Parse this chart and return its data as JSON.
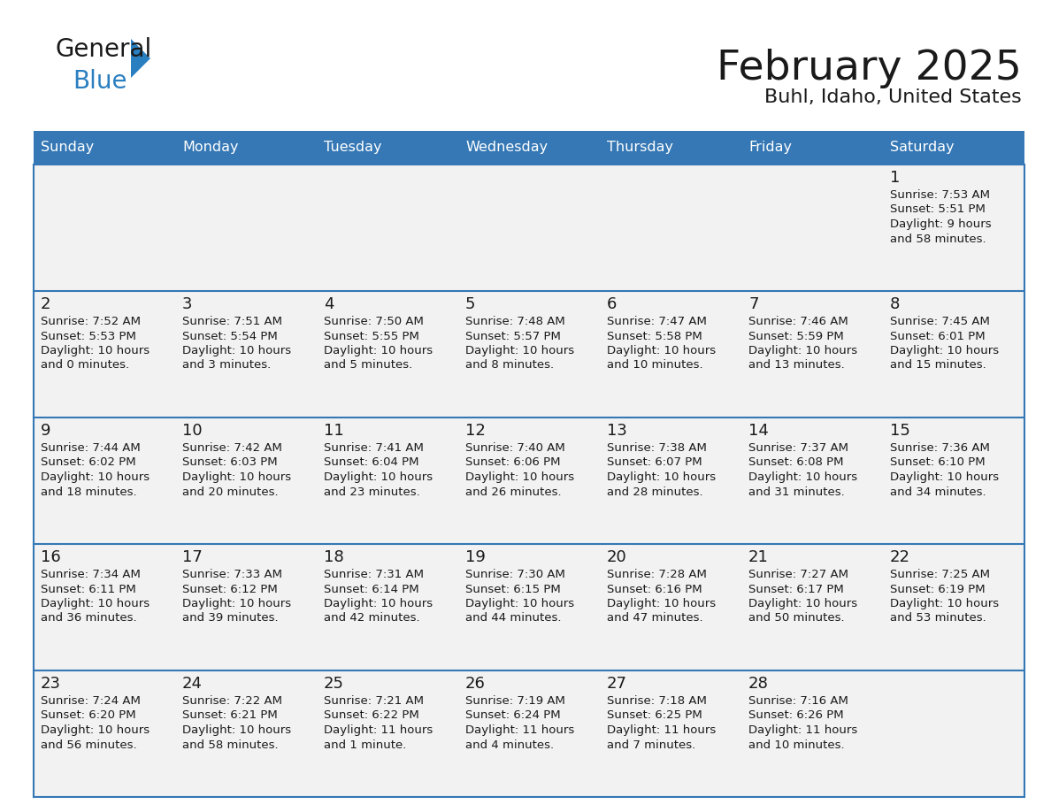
{
  "title": "February 2025",
  "subtitle": "Buhl, Idaho, United States",
  "header_color": "#3578b5",
  "header_text_color": "#ffffff",
  "cell_bg_color": "#f2f2f2",
  "row_border_color": "#3578b5",
  "text_color": "#1a1a1a",
  "day_names": [
    "Sunday",
    "Monday",
    "Tuesday",
    "Wednesday",
    "Thursday",
    "Friday",
    "Saturday"
  ],
  "days": [
    {
      "day": 1,
      "col": 6,
      "row": 0,
      "sunrise": "7:53 AM",
      "sunset": "5:51 PM",
      "daylight_line1": "Daylight: 9 hours",
      "daylight_line2": "and 58 minutes."
    },
    {
      "day": 2,
      "col": 0,
      "row": 1,
      "sunrise": "7:52 AM",
      "sunset": "5:53 PM",
      "daylight_line1": "Daylight: 10 hours",
      "daylight_line2": "and 0 minutes."
    },
    {
      "day": 3,
      "col": 1,
      "row": 1,
      "sunrise": "7:51 AM",
      "sunset": "5:54 PM",
      "daylight_line1": "Daylight: 10 hours",
      "daylight_line2": "and 3 minutes."
    },
    {
      "day": 4,
      "col": 2,
      "row": 1,
      "sunrise": "7:50 AM",
      "sunset": "5:55 PM",
      "daylight_line1": "Daylight: 10 hours",
      "daylight_line2": "and 5 minutes."
    },
    {
      "day": 5,
      "col": 3,
      "row": 1,
      "sunrise": "7:48 AM",
      "sunset": "5:57 PM",
      "daylight_line1": "Daylight: 10 hours",
      "daylight_line2": "and 8 minutes."
    },
    {
      "day": 6,
      "col": 4,
      "row": 1,
      "sunrise": "7:47 AM",
      "sunset": "5:58 PM",
      "daylight_line1": "Daylight: 10 hours",
      "daylight_line2": "and 10 minutes."
    },
    {
      "day": 7,
      "col": 5,
      "row": 1,
      "sunrise": "7:46 AM",
      "sunset": "5:59 PM",
      "daylight_line1": "Daylight: 10 hours",
      "daylight_line2": "and 13 minutes."
    },
    {
      "day": 8,
      "col": 6,
      "row": 1,
      "sunrise": "7:45 AM",
      "sunset": "6:01 PM",
      "daylight_line1": "Daylight: 10 hours",
      "daylight_line2": "and 15 minutes."
    },
    {
      "day": 9,
      "col": 0,
      "row": 2,
      "sunrise": "7:44 AM",
      "sunset": "6:02 PM",
      "daylight_line1": "Daylight: 10 hours",
      "daylight_line2": "and 18 minutes."
    },
    {
      "day": 10,
      "col": 1,
      "row": 2,
      "sunrise": "7:42 AM",
      "sunset": "6:03 PM",
      "daylight_line1": "Daylight: 10 hours",
      "daylight_line2": "and 20 minutes."
    },
    {
      "day": 11,
      "col": 2,
      "row": 2,
      "sunrise": "7:41 AM",
      "sunset": "6:04 PM",
      "daylight_line1": "Daylight: 10 hours",
      "daylight_line2": "and 23 minutes."
    },
    {
      "day": 12,
      "col": 3,
      "row": 2,
      "sunrise": "7:40 AM",
      "sunset": "6:06 PM",
      "daylight_line1": "Daylight: 10 hours",
      "daylight_line2": "and 26 minutes."
    },
    {
      "day": 13,
      "col": 4,
      "row": 2,
      "sunrise": "7:38 AM",
      "sunset": "6:07 PM",
      "daylight_line1": "Daylight: 10 hours",
      "daylight_line2": "and 28 minutes."
    },
    {
      "day": 14,
      "col": 5,
      "row": 2,
      "sunrise": "7:37 AM",
      "sunset": "6:08 PM",
      "daylight_line1": "Daylight: 10 hours",
      "daylight_line2": "and 31 minutes."
    },
    {
      "day": 15,
      "col": 6,
      "row": 2,
      "sunrise": "7:36 AM",
      "sunset": "6:10 PM",
      "daylight_line1": "Daylight: 10 hours",
      "daylight_line2": "and 34 minutes."
    },
    {
      "day": 16,
      "col": 0,
      "row": 3,
      "sunrise": "7:34 AM",
      "sunset": "6:11 PM",
      "daylight_line1": "Daylight: 10 hours",
      "daylight_line2": "and 36 minutes."
    },
    {
      "day": 17,
      "col": 1,
      "row": 3,
      "sunrise": "7:33 AM",
      "sunset": "6:12 PM",
      "daylight_line1": "Daylight: 10 hours",
      "daylight_line2": "and 39 minutes."
    },
    {
      "day": 18,
      "col": 2,
      "row": 3,
      "sunrise": "7:31 AM",
      "sunset": "6:14 PM",
      "daylight_line1": "Daylight: 10 hours",
      "daylight_line2": "and 42 minutes."
    },
    {
      "day": 19,
      "col": 3,
      "row": 3,
      "sunrise": "7:30 AM",
      "sunset": "6:15 PM",
      "daylight_line1": "Daylight: 10 hours",
      "daylight_line2": "and 44 minutes."
    },
    {
      "day": 20,
      "col": 4,
      "row": 3,
      "sunrise": "7:28 AM",
      "sunset": "6:16 PM",
      "daylight_line1": "Daylight: 10 hours",
      "daylight_line2": "and 47 minutes."
    },
    {
      "day": 21,
      "col": 5,
      "row": 3,
      "sunrise": "7:27 AM",
      "sunset": "6:17 PM",
      "daylight_line1": "Daylight: 10 hours",
      "daylight_line2": "and 50 minutes."
    },
    {
      "day": 22,
      "col": 6,
      "row": 3,
      "sunrise": "7:25 AM",
      "sunset": "6:19 PM",
      "daylight_line1": "Daylight: 10 hours",
      "daylight_line2": "and 53 minutes."
    },
    {
      "day": 23,
      "col": 0,
      "row": 4,
      "sunrise": "7:24 AM",
      "sunset": "6:20 PM",
      "daylight_line1": "Daylight: 10 hours",
      "daylight_line2": "and 56 minutes."
    },
    {
      "day": 24,
      "col": 1,
      "row": 4,
      "sunrise": "7:22 AM",
      "sunset": "6:21 PM",
      "daylight_line1": "Daylight: 10 hours",
      "daylight_line2": "and 58 minutes."
    },
    {
      "day": 25,
      "col": 2,
      "row": 4,
      "sunrise": "7:21 AM",
      "sunset": "6:22 PM",
      "daylight_line1": "Daylight: 11 hours",
      "daylight_line2": "and 1 minute."
    },
    {
      "day": 26,
      "col": 3,
      "row": 4,
      "sunrise": "7:19 AM",
      "sunset": "6:24 PM",
      "daylight_line1": "Daylight: 11 hours",
      "daylight_line2": "and 4 minutes."
    },
    {
      "day": 27,
      "col": 4,
      "row": 4,
      "sunrise": "7:18 AM",
      "sunset": "6:25 PM",
      "daylight_line1": "Daylight: 11 hours",
      "daylight_line2": "and 7 minutes."
    },
    {
      "day": 28,
      "col": 5,
      "row": 4,
      "sunrise": "7:16 AM",
      "sunset": "6:26 PM",
      "daylight_line1": "Daylight: 11 hours",
      "daylight_line2": "and 10 minutes."
    }
  ],
  "num_rows": 5,
  "logo_color_general": "#1a1a1a",
  "logo_color_blue": "#2a7fc1",
  "logo_triangle_color": "#2a7fc1"
}
